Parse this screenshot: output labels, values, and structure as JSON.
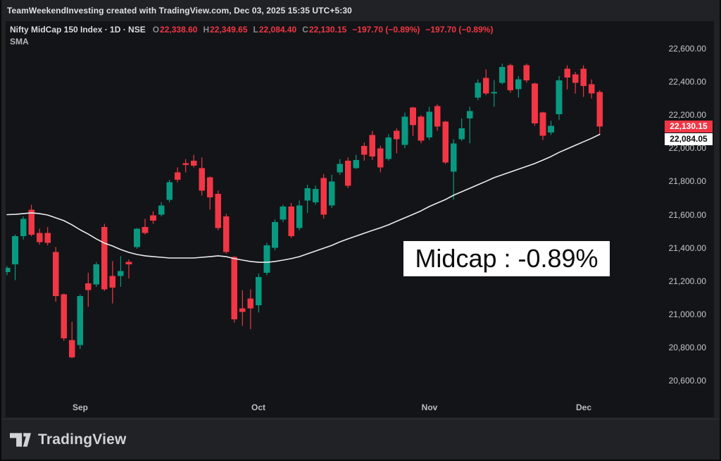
{
  "header": {
    "attribution": "TeamWeekendInvesting created with TradingView.com, Dec 03, 2025 15:35 UTC+5:30"
  },
  "legend": {
    "title_line": "Nifty MidCap 150 Index · 1D · NSE",
    "ohlc": [
      {
        "label": "O",
        "value": "22,338.60"
      },
      {
        "label": "H",
        "value": "22,349.65"
      },
      {
        "label": "L",
        "value": "22,084.40"
      },
      {
        "label": "C",
        "value": "22,130.15"
      }
    ],
    "change": "−197.70 (−0.89%)",
    "change_repeat": "−197.70 (−0.89%)",
    "indicator": "SMA"
  },
  "overlay_label": {
    "text": "Midcap : -0.89%"
  },
  "price_axis": {
    "labels": [
      {
        "text": "22,600.00",
        "value": 22600
      },
      {
        "text": "22,400.00",
        "value": 22400
      },
      {
        "text": "22,200.00",
        "value": 22200
      },
      {
        "text": "22,000.00",
        "value": 22000
      },
      {
        "text": "21,800.00",
        "value": 21800
      },
      {
        "text": "21,600.00",
        "value": 21600
      },
      {
        "text": "21,400.00",
        "value": 21400
      },
      {
        "text": "21,200.00",
        "value": 21200
      },
      {
        "text": "21,000.00",
        "value": 21000
      },
      {
        "text": "20,800.00",
        "value": 20800
      },
      {
        "text": "20,600.00",
        "value": 20600
      }
    ],
    "badges": {
      "last": {
        "text": "22,130.15",
        "value": 22130.15,
        "color": "#f23645"
      },
      "sma": {
        "text": "22,084.05",
        "value": 22084.05,
        "color": "#ffffff"
      }
    }
  },
  "time_axis": {
    "labels": [
      {
        "text": "Sep",
        "index": 9
      },
      {
        "text": "Oct",
        "index": 31
      },
      {
        "text": "Nov",
        "index": 52
      },
      {
        "text": "Dec",
        "index": 71
      }
    ]
  },
  "footer": {
    "brand": "TradingView"
  },
  "colors": {
    "up": "#089981",
    "down": "#f23645",
    "sma_line": "#ebecee",
    "chart_bg": "#131417",
    "frame_bg": "#212226",
    "last_badge": "#f23645",
    "axis_text": "#c6c8cc"
  },
  "chart_data": {
    "type": "candlestick",
    "title": "Nifty MidCap 150 Index · 1D · NSE",
    "interval": "1D",
    "ylim": [
      20379,
      22766
    ],
    "grid": false,
    "up_color": "#089981",
    "down_color": "#f23645",
    "line_color": "#ebecee",
    "overlay_indicator": "SMA",
    "candles": [
      [
        21255,
        21290,
        21235,
        21280
      ],
      [
        21300,
        21480,
        21205,
        21470
      ],
      [
        21470,
        21590,
        21450,
        21575
      ],
      [
        21630,
        21660,
        21470,
        21480
      ],
      [
        21490,
        21515,
        21420,
        21435
      ],
      [
        21490,
        21525,
        21415,
        21430
      ],
      [
        21375,
        21405,
        21075,
        21110
      ],
      [
        21120,
        21125,
        20840,
        20855
      ],
      [
        20845,
        20955,
        20735,
        20740
      ],
      [
        20815,
        21120,
        20790,
        21110
      ],
      [
        21185,
        21250,
        21045,
        21145
      ],
      [
        21180,
        21315,
        21165,
        21300
      ],
      [
        21525,
        21545,
        21140,
        21150
      ],
      [
        21230,
        21320,
        21065,
        21160
      ],
      [
        21230,
        21350,
        21165,
        21260
      ],
      [
        21315,
        21330,
        21215,
        21300
      ],
      [
        21405,
        21520,
        21395,
        21515
      ],
      [
        21525,
        21575,
        21480,
        21490
      ],
      [
        21595,
        21620,
        21545,
        21565
      ],
      [
        21600,
        21675,
        21590,
        21655
      ],
      [
        21690,
        21810,
        21675,
        21795
      ],
      [
        21855,
        21885,
        21795,
        21810
      ],
      [
        21910,
        21935,
        21855,
        21900
      ],
      [
        21925,
        21960,
        21885,
        21895
      ],
      [
        21880,
        21945,
        21715,
        21745
      ],
      [
        21825,
        21830,
        21630,
        21705
      ],
      [
        21725,
        21745,
        21505,
        21520
      ],
      [
        21590,
        21605,
        21365,
        21375
      ],
      [
        21345,
        21350,
        20950,
        20970
      ],
      [
        21035,
        21145,
        20930,
        21015
      ],
      [
        21095,
        21150,
        20910,
        21035
      ],
      [
        21055,
        21245,
        21010,
        21225
      ],
      [
        21250,
        21430,
        21235,
        21415
      ],
      [
        21400,
        21570,
        21385,
        21555
      ],
      [
        21570,
        21660,
        21555,
        21650
      ],
      [
        21650,
        21670,
        21460,
        21470
      ],
      [
        21520,
        21685,
        21505,
        21655
      ],
      [
        21685,
        21780,
        21610,
        21760
      ],
      [
        21675,
        21775,
        21660,
        21755
      ],
      [
        21820,
        21845,
        21575,
        21600
      ],
      [
        21655,
        21840,
        21640,
        21800
      ],
      [
        21855,
        21935,
        21840,
        21905
      ],
      [
        21925,
        21945,
        21760,
        21775
      ],
      [
        21880,
        21960,
        21875,
        21930
      ],
      [
        22015,
        22035,
        21925,
        21960
      ],
      [
        22080,
        22105,
        21930,
        21950
      ],
      [
        22000,
        22015,
        21855,
        21885
      ],
      [
        21935,
        22085,
        21925,
        22065
      ],
      [
        22105,
        22120,
        21970,
        22055
      ],
      [
        22020,
        22215,
        22000,
        22190
      ],
      [
        22245,
        22250,
        22075,
        22140
      ],
      [
        22190,
        22200,
        22030,
        22045
      ],
      [
        22065,
        22250,
        22050,
        22220
      ],
      [
        22255,
        22265,
        22105,
        22130
      ],
      [
        22160,
        22165,
        21905,
        21915
      ],
      [
        21860,
        22055,
        21690,
        22030
      ],
      [
        22055,
        22180,
        22045,
        22120
      ],
      [
        22180,
        22250,
        22030,
        22225
      ],
      [
        22305,
        22415,
        22290,
        22395
      ],
      [
        22425,
        22475,
        22320,
        22330
      ],
      [
        22330,
        22410,
        22250,
        22340
      ],
      [
        22395,
        22510,
        22385,
        22490
      ],
      [
        22500,
        22510,
        22335,
        22350
      ],
      [
        22355,
        22435,
        22305,
        22415
      ],
      [
        22500,
        22510,
        22395,
        22410
      ],
      [
        22390,
        22395,
        22135,
        22150
      ],
      [
        22215,
        22220,
        22050,
        22075
      ],
      [
        22095,
        22165,
        22080,
        22135
      ],
      [
        22205,
        22435,
        22170,
        22410
      ],
      [
        22480,
        22500,
        22355,
        22425
      ],
      [
        22445,
        22460,
        22330,
        22395
      ],
      [
        22480,
        22500,
        22310,
        22375
      ],
      [
        22385,
        22415,
        22300,
        22330
      ],
      [
        22338.6,
        22349.65,
        22084.4,
        22130.15
      ]
    ],
    "sma": [
      21600,
      21602,
      21606,
      21611,
      21606,
      21598,
      21581,
      21564,
      21539,
      21509,
      21483,
      21454,
      21428,
      21411,
      21390,
      21373,
      21360,
      21352,
      21347,
      21343,
      21339,
      21339,
      21339,
      21339,
      21343,
      21347,
      21352,
      21347,
      21335,
      21326,
      21318,
      21313,
      21313,
      21318,
      21326,
      21335,
      21347,
      21364,
      21381,
      21398,
      21415,
      21436,
      21454,
      21471,
      21488,
      21505,
      21521,
      21539,
      21560,
      21581,
      21602,
      21623,
      21649,
      21670,
      21691,
      21717,
      21738,
      21759,
      21780,
      21801,
      21823,
      21840,
      21857,
      21874,
      21891,
      21908,
      21929,
      21950,
      21975,
      21997,
      22018,
      22039,
      22060,
      22084.05
    ]
  }
}
